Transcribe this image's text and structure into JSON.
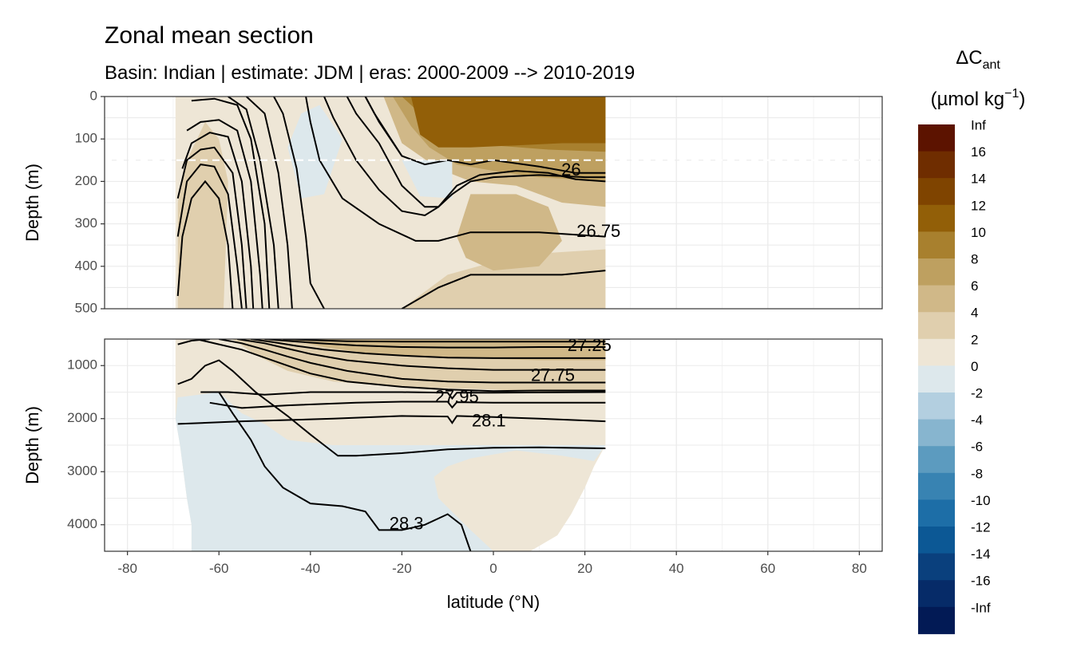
{
  "chart_data": {
    "type": "contour-section",
    "title": "Zonal mean section",
    "subtitle": "Basin: Indian | estimate: JDM  | eras: 2000-2009 --> 2010-2019",
    "xlabel": "latitude (°N)",
    "xlim": [
      -85,
      85
    ],
    "x_ticks": [
      -80,
      -60,
      -40,
      -20,
      0,
      20,
      40,
      60,
      80
    ],
    "panels": [
      {
        "id": "upper",
        "ylabel": "Depth (m)",
        "ylim": [
          0,
          500
        ],
        "y_ticks": [
          0,
          100,
          200,
          300,
          400,
          500
        ],
        "reference_line_depth": 150,
        "contour_labels": [
          {
            "text": "26",
            "lat": 17,
            "depth": 175
          },
          {
            "text": "26.75",
            "lat": 23,
            "depth": 320
          }
        ]
      },
      {
        "id": "lower",
        "ylabel": "Depth (m)",
        "ylim": [
          500,
          4500
        ],
        "y_ticks": [
          1000,
          2000,
          3000,
          4000
        ],
        "contour_labels": [
          {
            "text": "27.25",
            "lat": 21,
            "depth": 640
          },
          {
            "text": "27.75",
            "lat": 13,
            "depth": 1200
          },
          {
            "text": "27.95",
            "lat": -8,
            "depth": 1610
          },
          {
            "text": "28.1",
            "lat": -1,
            "depth": 2060
          },
          {
            "text": "28.3",
            "lat": -19,
            "depth": 4000
          }
        ]
      }
    ],
    "legend": {
      "title_main": "ΔC",
      "title_sub": "ant",
      "unit_main": "(µmol kg",
      "unit_sup": "−1",
      "unit_close": ")",
      "labels": [
        "Inf",
        "16",
        "14",
        "12",
        "10",
        "8",
        "6",
        "4",
        "2",
        "0",
        "-2",
        "-4",
        "-6",
        "-8",
        "-10",
        "-12",
        "-14",
        "-16",
        "-Inf"
      ],
      "colors": [
        "#5c1300",
        "#6f2d00",
        "#7f4400",
        "#925f08",
        "#a8802e",
        "#bea060",
        "#d0b888",
        "#e0cfae",
        "#eee6d6",
        "#dde8ec",
        "#b3cfe0",
        "#87b5cf",
        "#5c9bbf",
        "#3883b2",
        "#1d6ea7",
        "#0c5895",
        "#0a407d",
        "#062b68",
        "#021a55"
      ],
      "position": "right"
    }
  }
}
